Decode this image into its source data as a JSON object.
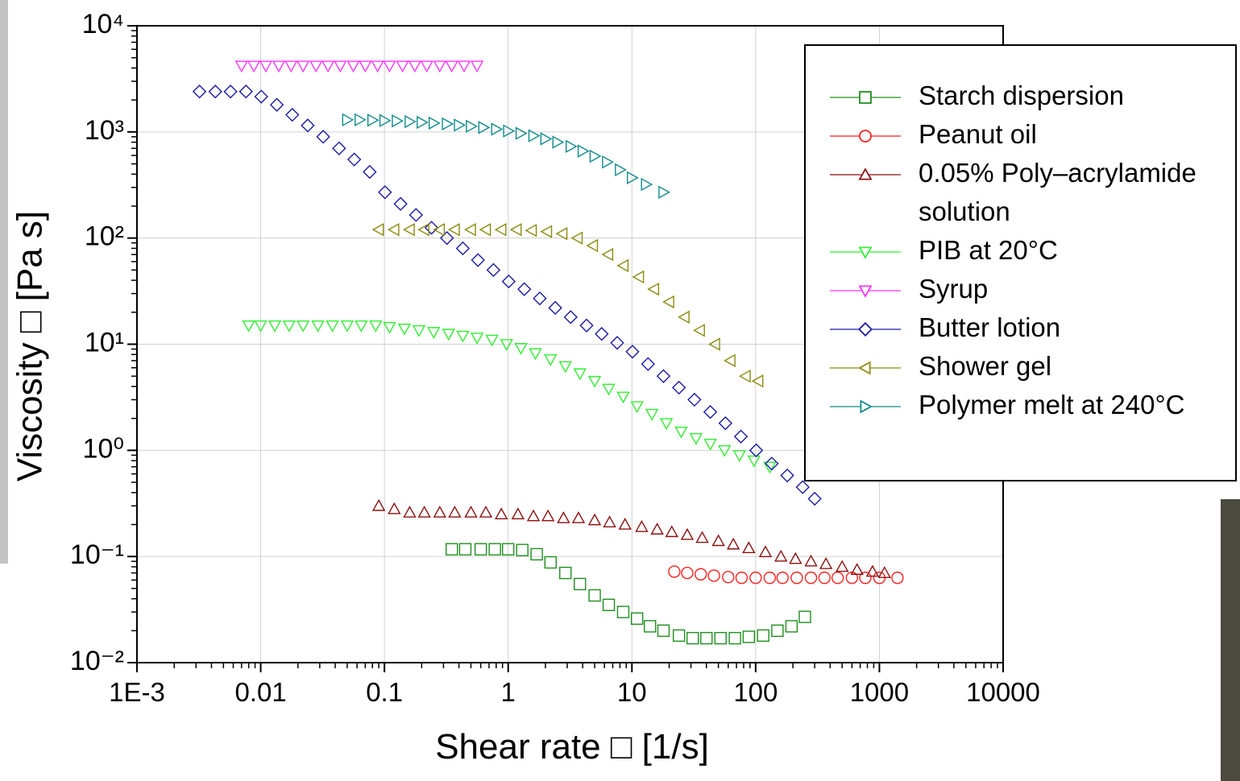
{
  "chart_data": {
    "type": "scatter",
    "xlabel": "Shear rate □ [1/s]",
    "ylabel": "Viscosity □ [Pa s]",
    "xscale": "log",
    "yscale": "log",
    "grid": true,
    "legend": "upper right",
    "xlim": [
      0.001,
      10000
    ],
    "ylim": [
      0.01,
      10000
    ],
    "xticks": [
      {
        "value": 0.001,
        "label": "1E-3"
      },
      0.01,
      0.1,
      1,
      10,
      100,
      1000,
      10000
    ],
    "yticks": [
      {
        "value": 0.01,
        "label": "10⁻²"
      },
      {
        "value": 0.1,
        "label": "10⁻¹"
      },
      {
        "value": 1,
        "label": "10⁰"
      },
      {
        "value": 10,
        "label": "10¹"
      },
      {
        "value": 100,
        "label": "10²"
      },
      {
        "value": 1000,
        "label": "10³"
      },
      {
        "value": 10000,
        "label": "10⁴"
      }
    ],
    "series": [
      {
        "name": "Starch dispersion",
        "color": "#1f8f1f",
        "marker": "square",
        "x": [
          0.35,
          0.45,
          0.6,
          0.78,
          1,
          1.3,
          1.7,
          2.2,
          2.9,
          3.8,
          5,
          6.5,
          8.5,
          11,
          14,
          18,
          24,
          31,
          40,
          52,
          68,
          88,
          115,
          150,
          195,
          250
        ],
        "values": [
          0.117,
          0.117,
          0.117,
          0.117,
          0.117,
          0.115,
          0.105,
          0.088,
          0.07,
          0.055,
          0.043,
          0.035,
          0.03,
          0.026,
          0.022,
          0.02,
          0.018,
          0.017,
          0.017,
          0.017,
          0.017,
          0.0175,
          0.018,
          0.02,
          0.022,
          0.027
        ]
      },
      {
        "name": "Peanut oil",
        "color": "#ff2020",
        "marker": "circle",
        "x": [
          22,
          28,
          36,
          46,
          60,
          77,
          100,
          130,
          165,
          215,
          280,
          360,
          460,
          600,
          770,
          1000,
          1400
        ],
        "values": [
          0.072,
          0.07,
          0.068,
          0.066,
          0.064,
          0.063,
          0.063,
          0.063,
          0.063,
          0.063,
          0.063,
          0.063,
          0.063,
          0.063,
          0.063,
          0.063,
          0.063
        ]
      },
      {
        "name": "0.05% Poly–acrylamide solution",
        "color": "#8b1010",
        "marker": "triangle-up",
        "x": [
          0.09,
          0.12,
          0.16,
          0.21,
          0.28,
          0.37,
          0.5,
          0.66,
          0.88,
          1.2,
          1.6,
          2.1,
          2.8,
          3.7,
          5,
          6.6,
          8.8,
          12,
          16,
          21,
          28,
          37,
          50,
          66,
          88,
          120,
          160,
          210,
          280,
          370,
          500,
          660,
          880,
          1100
        ],
        "values": [
          0.3,
          0.28,
          0.26,
          0.26,
          0.26,
          0.26,
          0.26,
          0.26,
          0.25,
          0.25,
          0.24,
          0.24,
          0.23,
          0.23,
          0.22,
          0.21,
          0.2,
          0.19,
          0.18,
          0.17,
          0.16,
          0.15,
          0.14,
          0.13,
          0.12,
          0.11,
          0.1,
          0.095,
          0.09,
          0.085,
          0.08,
          0.075,
          0.072,
          0.07
        ]
      },
      {
        "name": "PIB at 20°C",
        "color": "#33ee33",
        "marker": "triangle-down",
        "x": [
          0.008,
          0.01,
          0.013,
          0.017,
          0.022,
          0.029,
          0.038,
          0.05,
          0.065,
          0.085,
          0.11,
          0.145,
          0.19,
          0.25,
          0.33,
          0.43,
          0.56,
          0.74,
          0.97,
          1.27,
          1.66,
          2.2,
          2.9,
          3.8,
          5,
          6.5,
          8.5,
          11,
          14.5,
          19,
          25,
          33,
          43,
          56,
          74,
          97,
          130
        ],
        "values": [
          15,
          15,
          15,
          15,
          15,
          15,
          15,
          15,
          15,
          15,
          14.5,
          14,
          13.5,
          13,
          12.5,
          12,
          11.5,
          11,
          10,
          9.2,
          8.2,
          7.2,
          6.2,
          5.3,
          4.5,
          3.8,
          3.2,
          2.6,
          2.2,
          1.8,
          1.5,
          1.3,
          1.15,
          1.0,
          0.9,
          0.8,
          0.7
        ]
      },
      {
        "name": "Syrup",
        "color": "#ff33ff",
        "marker": "triangle-down",
        "x": [
          0.007,
          0.0088,
          0.011,
          0.014,
          0.0176,
          0.022,
          0.028,
          0.035,
          0.044,
          0.056,
          0.07,
          0.088,
          0.11,
          0.14,
          0.176,
          0.22,
          0.28,
          0.35,
          0.44,
          0.56
        ],
        "values": [
          4200,
          4200,
          4200,
          4200,
          4200,
          4200,
          4200,
          4200,
          4200,
          4200,
          4200,
          4200,
          4200,
          4200,
          4200,
          4200,
          4200,
          4200,
          4200,
          4200
        ]
      },
      {
        "name": "Butter lotion",
        "color": "#1a1aa8",
        "marker": "diamond",
        "x": [
          0.0032,
          0.0043,
          0.0057,
          0.0076,
          0.0101,
          0.0135,
          0.018,
          0.024,
          0.032,
          0.043,
          0.057,
          0.076,
          0.101,
          0.135,
          0.18,
          0.24,
          0.32,
          0.43,
          0.57,
          0.76,
          1.01,
          1.35,
          1.8,
          2.4,
          3.2,
          4.3,
          5.7,
          7.6,
          10.1,
          13.5,
          18,
          24,
          32,
          43,
          57,
          76,
          101,
          135,
          180,
          240,
          300
        ],
        "values": [
          2400,
          2400,
          2400,
          2400,
          2150,
          1800,
          1450,
          1150,
          900,
          700,
          550,
          420,
          270,
          210,
          165,
          125,
          100,
          80,
          62,
          50,
          39,
          33,
          27,
          22,
          18,
          15,
          12.5,
          10.3,
          8.5,
          6.5,
          5,
          3.9,
          3,
          2.3,
          1.8,
          1.35,
          1.0,
          0.75,
          0.58,
          0.45,
          0.35
        ]
      },
      {
        "name": "Shower gel",
        "color": "#8b8b10",
        "marker": "triangle-left",
        "x": [
          0.09,
          0.12,
          0.16,
          0.21,
          0.28,
          0.37,
          0.5,
          0.66,
          0.88,
          1.17,
          1.55,
          2.06,
          2.74,
          3.64,
          4.84,
          6.43,
          8.55,
          11.4,
          15.1,
          20,
          26.6,
          35.4,
          47,
          62.5,
          83,
          105
        ],
        "values": [
          120,
          120,
          120,
          120,
          120,
          120,
          120,
          120,
          120,
          120,
          118,
          115,
          110,
          100,
          85,
          70,
          55,
          43,
          33,
          25,
          18,
          13.5,
          10,
          7,
          5,
          4.5
        ]
      },
      {
        "name": "Polymer melt at 240°C",
        "color": "#108b8b",
        "marker": "triangle-right",
        "x": [
          0.05,
          0.063,
          0.08,
          0.1,
          0.126,
          0.16,
          0.2,
          0.25,
          0.32,
          0.4,
          0.5,
          0.63,
          0.8,
          1.0,
          1.26,
          1.6,
          2.0,
          2.5,
          3.2,
          4.0,
          5.0,
          6.3,
          8.0,
          10,
          13,
          18
        ],
        "values": [
          1300,
          1300,
          1290,
          1280,
          1270,
          1250,
          1230,
          1210,
          1190,
          1160,
          1130,
          1100,
          1060,
          1020,
          970,
          920,
          860,
          800,
          730,
          660,
          590,
          520,
          440,
          370,
          320,
          270
        ]
      }
    ]
  }
}
